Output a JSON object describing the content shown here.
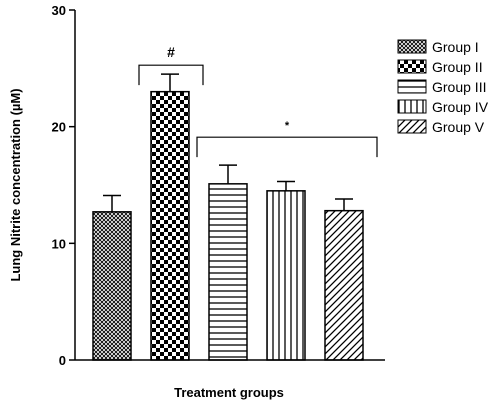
{
  "chart_data": {
    "type": "bar",
    "xlabel": "Treatment groups",
    "ylabel": "Lung Nitrite concentration (µM)",
    "ylim": [
      0,
      30
    ],
    "yticks": [
      0,
      10,
      20,
      30
    ],
    "grid": false,
    "legend_position": "right",
    "categories": [
      "Group I",
      "Group II",
      "Group III",
      "Group IV",
      "Group V"
    ],
    "values": [
      12.7,
      23.0,
      15.1,
      14.5,
      12.8
    ],
    "errors": [
      1.4,
      1.5,
      1.6,
      0.8,
      1.0
    ],
    "patterns": [
      "fine-crosshatch",
      "checkerboard",
      "horizontal-lines",
      "vertical-lines",
      "diagonal-lines"
    ],
    "annotations": [
      {
        "text": "#",
        "span": [
          "Group II",
          "Group II"
        ]
      },
      {
        "text": "*",
        "span": [
          "Group III",
          "Group V"
        ]
      }
    ]
  }
}
